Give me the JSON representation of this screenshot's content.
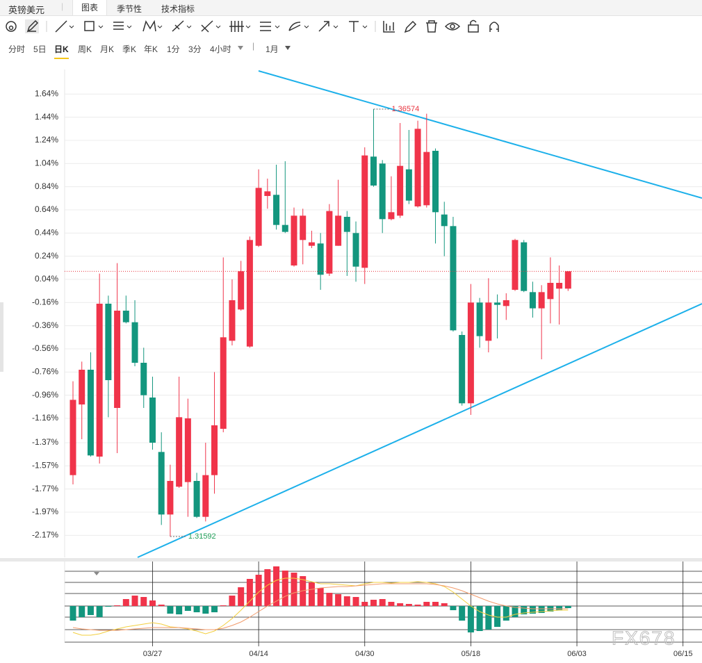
{
  "header": {
    "symbol": "英镑美元",
    "tabs": [
      "图表",
      "季节性",
      "技术指标"
    ]
  },
  "periods": [
    "分时",
    "5日",
    "日K",
    "周K",
    "月K",
    "季K",
    "年K",
    "1分",
    "3分",
    "4小时"
  ],
  "range": "1月",
  "watermark": "FX678",
  "chart_data": [
    {
      "type": "candlestick",
      "categories": [
        null,
        null,
        null,
        null,
        null,
        null,
        null,
        null,
        null,
        "03/27",
        null,
        null,
        null,
        null,
        null,
        null,
        null,
        null,
        null,
        null,
        null,
        "04/14",
        null,
        null,
        null,
        null,
        null,
        null,
        null,
        null,
        null,
        null,
        null,
        "04/30",
        null,
        null,
        null,
        null,
        null,
        null,
        null,
        null,
        null,
        null,
        null,
        "05/18",
        null,
        null,
        null,
        null,
        null,
        null,
        null,
        null,
        null,
        null,
        null,
        "06/03",
        null,
        null,
        null,
        null,
        null,
        null,
        null,
        null,
        null,
        null,
        null,
        "06/15",
        null
      ],
      "open": [
        -1.65,
        -1.04,
        -0.74,
        -1.49,
        -0.17,
        -1.07,
        -0.23,
        -0.33,
        -0.68,
        -0.98,
        -1.45,
        -1.99,
        -1.75,
        -1.71,
        -1.7,
        -2.01,
        -1.65,
        -1.25,
        -0.49,
        -0.22,
        -0.54,
        0.33,
        0.76,
        0.77,
        0.51,
        0.16,
        0.38,
        0.33,
        0.35,
        0.09,
        0.33,
        0.58,
        0.44,
        0.14,
        1.1,
        1.04,
        0.56,
        0.59,
        0.99,
        0.67,
        0.68,
        1.15,
        0.6,
        0.5,
        -0.44,
        -1.03,
        -0.16,
        -0.49,
        -0.16,
        -0.19,
        -0.05,
        0.36,
        -0.07,
        -0.21,
        -0.13,
        -0.04,
        -0.04,
        null,
        null,
        null,
        null,
        null,
        null,
        null,
        null,
        null,
        null,
        null,
        null,
        null,
        null
      ],
      "high": [
        -0.84,
        -0.67,
        -0.59,
        0.09,
        -0.1,
        0.18,
        -0.1,
        -0.14,
        -0.55,
        -0.8,
        -1.28,
        -1.56,
        -0.8,
        -0.99,
        -1.63,
        -1.37,
        -0.76,
        0.23,
        0.04,
        0.2,
        0.41,
        0.99,
        0.91,
        1.03,
        1.06,
        0.66,
        0.65,
        0.46,
        0.44,
        0.69,
        0.9,
        0.63,
        0.54,
        1.18,
        1.51,
        1.07,
        0.93,
        1.39,
        1.33,
        1.41,
        1.47,
        1.17,
        0.71,
        0.58,
        -0.41,
        0.0,
        -0.12,
        0.05,
        -0.09,
        -0.08,
        0.39,
        0.38,
        0.02,
        -0.01,
        0.23,
        0.16,
        0.11,
        null,
        null,
        null,
        null,
        null,
        null,
        null,
        null,
        null,
        null,
        null,
        null,
        null,
        null
      ],
      "low": [
        -1.73,
        -1.34,
        -1.49,
        -1.55,
        -1.15,
        -1.46,
        -0.34,
        -0.71,
        -1.07,
        -1.43,
        -2.08,
        -2.18,
        -1.76,
        -2.01,
        -2.02,
        -2.05,
        -1.81,
        -1.28,
        -0.53,
        -0.23,
        -0.55,
        0.32,
        0.65,
        0.47,
        0.44,
        0.15,
        0.17,
        0.31,
        -0.05,
        0.07,
        0.33,
        0.07,
        0.02,
        0.0,
        0.84,
        0.44,
        0.55,
        0.57,
        0.69,
        0.66,
        0.66,
        0.35,
        0.24,
        -0.41,
        -1.05,
        -1.13,
        -0.55,
        -0.59,
        -0.47,
        -0.31,
        -0.06,
        -0.07,
        -0.29,
        -0.65,
        -0.34,
        -0.35,
        -0.06,
        null,
        null,
        null,
        null,
        null,
        null,
        null,
        null,
        null,
        null,
        null,
        null,
        null,
        null
      ],
      "close": [
        -1.0,
        -0.74,
        -1.48,
        -0.17,
        -0.83,
        -0.23,
        -0.33,
        -0.68,
        -0.96,
        -1.37,
        -1.99,
        -1.7,
        -1.15,
        -1.16,
        -2.01,
        -1.65,
        -1.22,
        -0.46,
        -0.14,
        0.11,
        0.38,
        0.83,
        0.8,
        0.51,
        0.45,
        0.59,
        0.59,
        0.36,
        0.08,
        0.63,
        0.59,
        0.45,
        0.15,
        1.11,
        0.85,
        0.56,
        0.62,
        1.02,
        0.72,
        1.34,
        1.14,
        0.62,
        0.5,
        -0.4,
        -1.03,
        -0.16,
        -0.45,
        -0.16,
        -0.18,
        -0.14,
        0.38,
        -0.06,
        -0.21,
        -0.07,
        0.01,
        0.01,
        0.11,
        null,
        null,
        null,
        null,
        null,
        null,
        null,
        null,
        null,
        null,
        null,
        null,
        null,
        null
      ],
      "up_color": "#f0344a",
      "down_color": "#13967e",
      "ylim": [
        -2.36,
        1.84
      ],
      "yticks": [
        {
          "value": 1.64,
          "label": "1.64%"
        },
        {
          "value": 1.44,
          "label": "1.44%"
        },
        {
          "value": 1.24,
          "label": "1.24%"
        },
        {
          "value": 1.04,
          "label": "1.04%"
        },
        {
          "value": 0.84,
          "label": "0.84%"
        },
        {
          "value": 0.64,
          "label": "0.64%"
        },
        {
          "value": 0.44,
          "label": "0.44%"
        },
        {
          "value": 0.24,
          "label": "0.24%"
        },
        {
          "value": 0.04,
          "label": "0.04%"
        },
        {
          "value": -0.16,
          "label": "-0.16%"
        },
        {
          "value": -0.36,
          "label": "-0.36%"
        },
        {
          "value": -0.56,
          "label": "-0.56%"
        },
        {
          "value": -0.76,
          "label": "-0.76%"
        },
        {
          "value": -0.96,
          "label": "-0.96%"
        },
        {
          "value": -1.16,
          "label": "-1.16%"
        },
        {
          "value": -1.37,
          "label": "-1.37%"
        },
        {
          "value": -1.57,
          "label": "-1.57%"
        },
        {
          "value": -1.77,
          "label": "-1.77%"
        },
        {
          "value": -1.97,
          "label": "-1.97%"
        },
        {
          "value": -2.17,
          "label": "-2.17%"
        }
      ],
      "grid": true,
      "annotations": [
        {
          "text": "1.36574",
          "color": "#e8343f"
        },
        {
          "text": "1.31592",
          "color": "#22a05a"
        }
      ]
    },
    {
      "type": "macd",
      "ylim": [
        -0.005,
        0.0064
      ],
      "histogram": {
        "up_color": "#f0344a",
        "down_color": "#13967e",
        "values": [
          -0.0021,
          -0.0016,
          -0.0013,
          -0.0016,
          -0.0001,
          0.0001,
          0.001,
          0.0015,
          0.0013,
          0.0008,
          0.0002,
          -0.0011,
          -0.0012,
          -0.0007,
          -0.0009,
          -0.0011,
          -0.0009,
          0.0001,
          0.0015,
          0.0027,
          0.0039,
          0.0045,
          0.0053,
          0.0057,
          0.0051,
          0.0048,
          0.0043,
          0.0034,
          0.0026,
          0.0019,
          0.0017,
          0.0014,
          0.0013,
          0.0006,
          0.0009,
          0.001,
          0.0006,
          0.0004,
          0.0003,
          0.0002,
          0.0006,
          0.0006,
          0.0004,
          -0.0006,
          -0.0021,
          -0.0038,
          -0.0036,
          -0.0034,
          -0.003,
          -0.0021,
          -0.0016,
          -0.0012,
          -0.0011,
          -0.001,
          -0.0008,
          -0.0006,
          -0.0003,
          null,
          null,
          null,
          null,
          null,
          null,
          null,
          null,
          null,
          null,
          null,
          null,
          null,
          null
        ]
      },
      "series": [
        {
          "color": "#f3cf3e",
          "values": [
            -0.0038,
            -0.0042,
            -0.0042,
            -0.004,
            -0.0036,
            -0.0033,
            -0.003,
            -0.0028,
            -0.0026,
            -0.0024,
            -0.0026,
            -0.003,
            -0.0031,
            -0.0033,
            -0.0036,
            -0.004,
            -0.0036,
            -0.0028,
            -0.0018,
            -0.0006,
            0.0007,
            0.002,
            0.003,
            0.0037,
            0.004,
            0.004,
            0.0038,
            0.0035,
            0.0032,
            0.0032,
            0.0031,
            0.003,
            0.0029,
            0.0032,
            0.0034,
            0.0034,
            0.0033,
            0.0034,
            0.0034,
            0.0035,
            0.0034,
            0.0032,
            0.0028,
            0.002,
            0.001,
            0.0,
            -0.0008,
            -0.0013,
            -0.0016,
            -0.0016,
            -0.0012,
            -0.001,
            -0.0009,
            -0.0008,
            -0.0007,
            -0.0006,
            -0.0006,
            null,
            null,
            null,
            null,
            null,
            null,
            null,
            null,
            null,
            null,
            null,
            null,
            null,
            null
          ]
        },
        {
          "color": "#f29b6b",
          "values": [
            -0.0031,
            -0.0033,
            -0.0034,
            -0.0035,
            -0.0035,
            -0.0035,
            -0.0034,
            -0.0033,
            -0.0032,
            -0.0031,
            -0.0031,
            -0.0031,
            -0.0031,
            -0.0032,
            -0.0033,
            -0.0034,
            -0.0034,
            -0.0032,
            -0.0028,
            -0.0023,
            -0.0016,
            -0.0008,
            0.0,
            0.0007,
            0.0014,
            0.0019,
            0.0022,
            0.0024,
            0.0026,
            0.0027,
            0.0028,
            0.0028,
            0.0029,
            0.003,
            0.0031,
            0.0032,
            0.0032,
            0.0032,
            0.0032,
            0.0032,
            0.0032,
            0.0031,
            0.0029,
            0.0026,
            0.0022,
            0.0017,
            0.0012,
            0.0007,
            0.0003,
            0.0,
            -0.0002,
            -0.0003,
            -0.0004,
            -0.0004,
            -0.0004,
            -0.0004,
            -0.0004,
            null,
            null,
            null,
            null,
            null,
            null,
            null,
            null,
            null,
            null,
            null,
            null,
            null,
            null
          ]
        }
      ]
    }
  ]
}
